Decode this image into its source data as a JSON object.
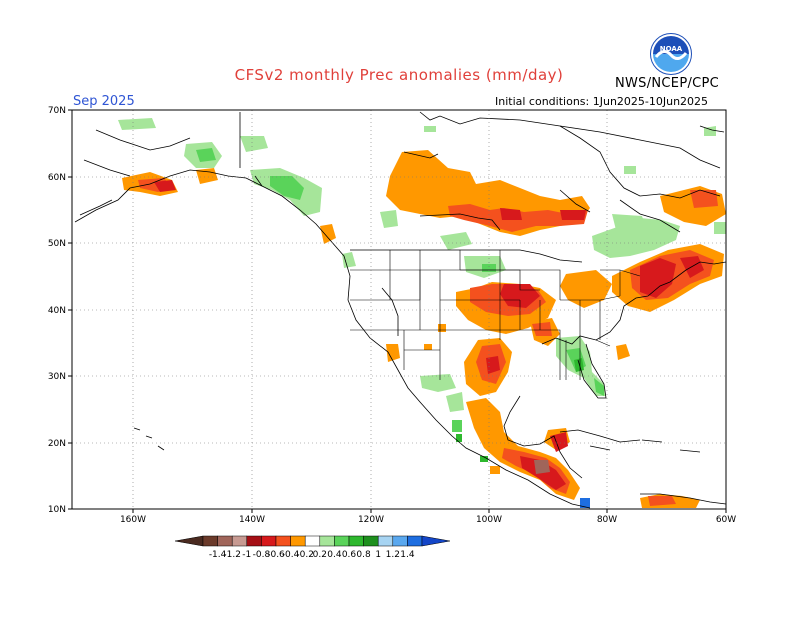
{
  "header": {
    "title": "CFSv2 monthly Prec anomalies (mm/day)",
    "month": "Sep 2025",
    "initial_conditions": "Initial conditions: 1Jun2025-10Jun2025",
    "agency": "NWS/NCEP/CPC",
    "logo_text": "NOAA"
  },
  "map": {
    "lat_labels": [
      "70N",
      "60N",
      "50N",
      "40N",
      "30N",
      "20N",
      "10N"
    ],
    "lon_labels": [
      "160W",
      "140W",
      "120W",
      "100W",
      "80W",
      "60W"
    ]
  },
  "colorbar": {
    "labels": [
      "-1.4",
      "-1.2",
      "-1",
      "-0.8",
      "-0.6",
      "-0.4",
      "-0.2",
      "0.2",
      "0.4",
      "0.6",
      "0.8",
      "1",
      "1.2",
      "1.4"
    ],
    "colors": [
      "#6b3a2a",
      "#a0655a",
      "#c79a92",
      "#a50f15",
      "#d7191c",
      "#f4511e",
      "#ff9800",
      "#ffffff",
      "#a6e59a",
      "#5ad35a",
      "#2eb82e",
      "#1e8f1e",
      "#a7d4f2",
      "#5aa8ef",
      "#1e6ee0"
    ],
    "low_arrow_color": "#4a2a20",
    "high_arrow_color": "#1446c8"
  }
}
